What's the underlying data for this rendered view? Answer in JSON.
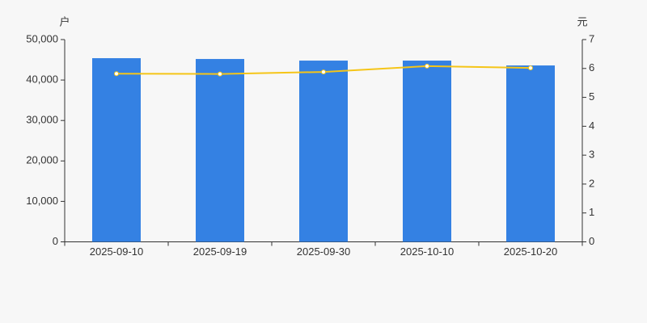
{
  "chart_data": {
    "type": "bar-line",
    "y_label": "户",
    "y2_label": "元",
    "categories": [
      "2025-09-10",
      "2025-09-19",
      "2025-09-30",
      "2025-10-10",
      "2025-10-20"
    ],
    "series": [
      {
        "type": "bar",
        "color": "#3481e3",
        "values": [
          45400,
          45200,
          44800,
          44800,
          43600
        ]
      },
      {
        "type": "line",
        "axis": "y2",
        "color": "#f5c518",
        "values": [
          5.82,
          5.81,
          5.88,
          6.08,
          6.02
        ]
      }
    ],
    "ylim": [
      0,
      50000
    ],
    "yticks": [
      0,
      {
        "value": 10000,
        "label": "10,000"
      },
      {
        "value": 20000,
        "label": "20,000"
      },
      {
        "value": 30000,
        "label": "30,000"
      },
      {
        "value": 40000,
        "label": "40,000"
      },
      {
        "value": 50000,
        "label": "50,000"
      }
    ],
    "y2lim": [
      0,
      7
    ],
    "y2ticks": [
      0,
      1,
      2,
      3,
      4,
      5,
      6,
      7
    ],
    "grid": false
  }
}
